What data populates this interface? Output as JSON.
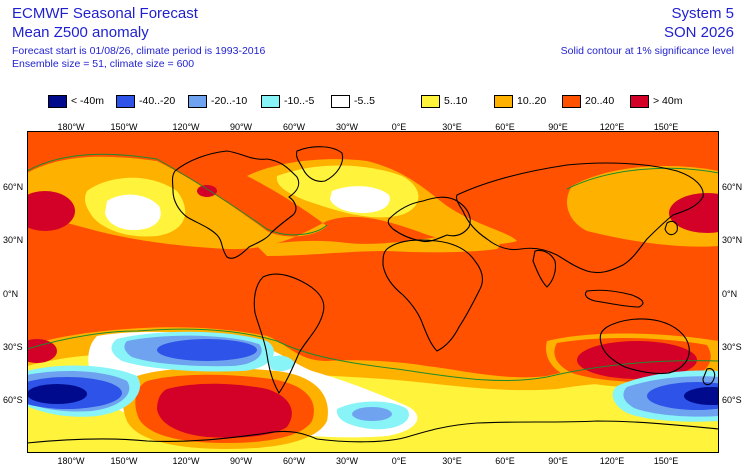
{
  "header": {
    "title_line1": "ECMWF Seasonal Forecast",
    "title_line2": "Mean Z500 anomaly",
    "info_line1": "Forecast start is 01/08/26, climate period is 1993-2016",
    "info_line2": "Ensemble size = 51, climate size = 600",
    "system": "System 5",
    "season": "SON 2026",
    "contour_note": "Solid contour at 1% significance level"
  },
  "legend": [
    {
      "label": "< -40m",
      "color": "#000a8c"
    },
    {
      "label": "-40..-20",
      "color": "#2d53e8"
    },
    {
      "label": "-20..-10",
      "color": "#6fa3f0"
    },
    {
      "label": "-10..-5",
      "color": "#88f4f8"
    },
    {
      "label": "-5..5",
      "color": "#ffffff"
    },
    {
      "label": "5..10",
      "color": "#fff33b"
    },
    {
      "label": "10..20",
      "color": "#ffb100"
    },
    {
      "label": "20..40",
      "color": "#ff5100"
    },
    {
      "label": "> 40m",
      "color": "#d30028"
    }
  ],
  "longitude_labels": [
    "180°W",
    "150°W",
    "120°W",
    "90°W",
    "60°W",
    "30°W",
    "0°E",
    "30°E",
    "60°E",
    "90°E",
    "120°E",
    "150°E"
  ],
  "latitude_labels": [
    "60°N",
    "30°N",
    "0°N",
    "30°S",
    "60°S"
  ]
}
